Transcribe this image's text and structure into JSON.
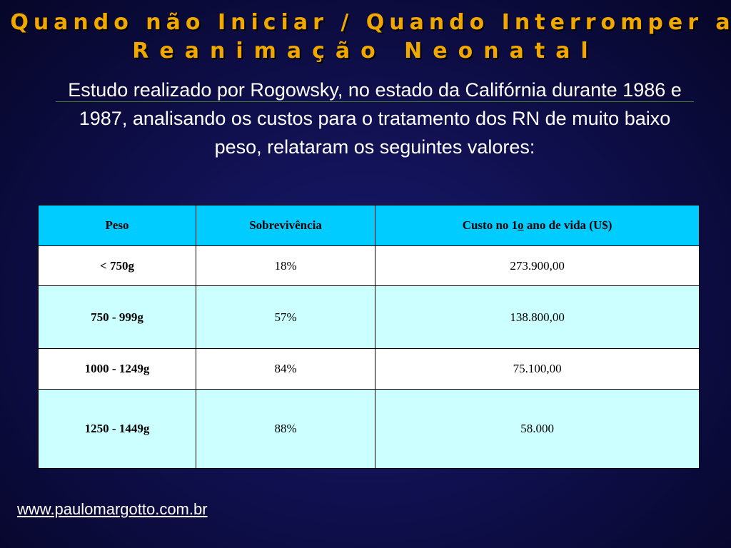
{
  "title": {
    "line1": "Quando não Iniciar / Quando Interromper a",
    "line2": "Reanimação Neonatal"
  },
  "intro": "Estudo realizado por Rogowsky, no estado da Califórnia durante 1986 e 1987, analisando os custos para o tratamento dos RN de muito baixo peso, relataram os seguintes valores:",
  "table": {
    "headers": {
      "peso": "Peso",
      "sobrevivencia": "Sobrevivência",
      "custo_prefix": "Custo no 1",
      "custo_ordinal": "o",
      "custo_suffix": " ano de vida (U$)"
    },
    "rows": [
      {
        "peso": "< 750g",
        "sobrevivencia": "18%",
        "custo": "273.900,00"
      },
      {
        "peso": "750 - 999g",
        "sobrevivencia": "57%",
        "custo": "138.800,00"
      },
      {
        "peso": "1000 - 1249g",
        "sobrevivencia": "84%",
        "custo": "75.100,00"
      },
      {
        "peso": "1250 - 1449g",
        "sobrevivencia": "88%",
        "custo": "58.000"
      }
    ]
  },
  "footer": {
    "link": "www.paulomargotto.com.br"
  },
  "colors": {
    "title": "#f0a800",
    "header_bg": "#00ccff",
    "alt_row_bg": "#ccffff",
    "row_bg": "#ffffff",
    "background": "#101050"
  }
}
